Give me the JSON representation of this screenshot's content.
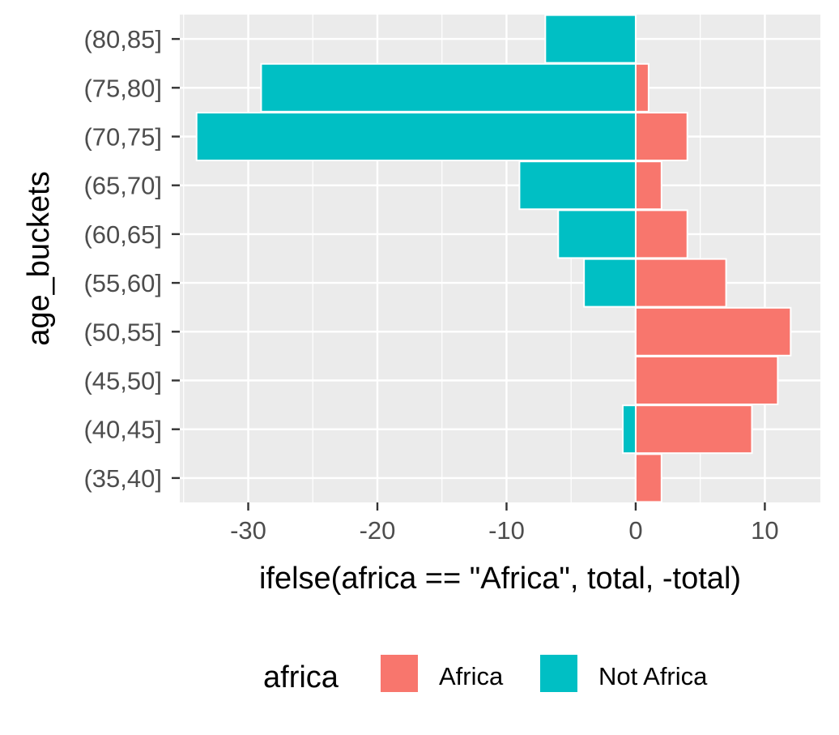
{
  "chart_data": {
    "type": "bar",
    "orientation": "horizontal",
    "stacking": "diverging",
    "categories": [
      "(35,40]",
      "(40,45]",
      "(45,50]",
      "(50,55]",
      "(55,60]",
      "(60,65]",
      "(65,70]",
      "(70,75]",
      "(75,80]",
      "(80,85]"
    ],
    "series": [
      {
        "name": "Africa",
        "color": "#F8766D",
        "values": [
          2,
          9,
          11,
          12,
          7,
          4,
          2,
          4,
          1,
          0
        ]
      },
      {
        "name": "Not Africa",
        "color": "#00BFC4",
        "values": [
          0,
          -1,
          0,
          0,
          -4,
          -6,
          -9,
          -34,
          -29,
          -7
        ]
      }
    ],
    "xlabel": "ifelse(africa == \"Africa\", total, -total)",
    "ylabel": "age_buckets",
    "xlim": [
      -35.3,
      14.3
    ],
    "x_ticks": [
      -30,
      -20,
      -10,
      0,
      10
    ],
    "x_tick_labels": [
      "-30",
      "-20",
      "-10",
      "0",
      "10"
    ],
    "grid": true,
    "legend": {
      "title": "africa",
      "position": "bottom",
      "entries": [
        "Africa",
        "Not Africa"
      ]
    },
    "panel_background": "#EBEBEB",
    "grid_color": "#FFFFFF"
  }
}
